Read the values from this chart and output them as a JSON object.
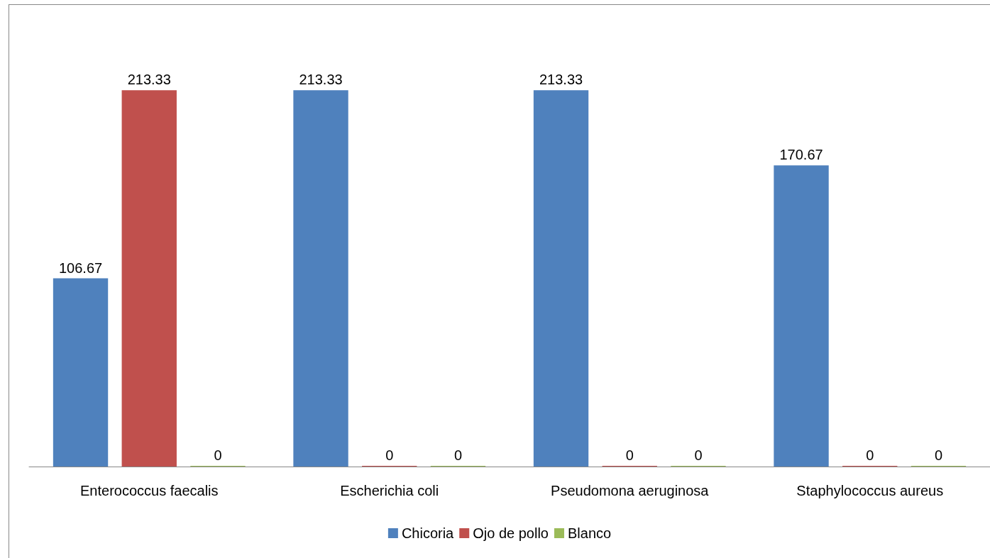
{
  "chart_data": {
    "type": "bar",
    "categories": [
      "Enterococcus faecalis",
      "Escherichia coli",
      "Pseudomona aeruginosa",
      "Staphylococcus aureus"
    ],
    "series": [
      {
        "name": "Chicoria",
        "color": "#4f81bd",
        "values": [
          106.67,
          213.33,
          213.33,
          170.67
        ]
      },
      {
        "name": "Ojo de pollo",
        "color": "#c0504d",
        "values": [
          213.33,
          0,
          0,
          0
        ]
      },
      {
        "name": "Blanco",
        "color": "#9bbb59",
        "values": [
          0,
          0,
          0,
          0
        ]
      }
    ],
    "data_labels": true,
    "legend": "bottom"
  }
}
